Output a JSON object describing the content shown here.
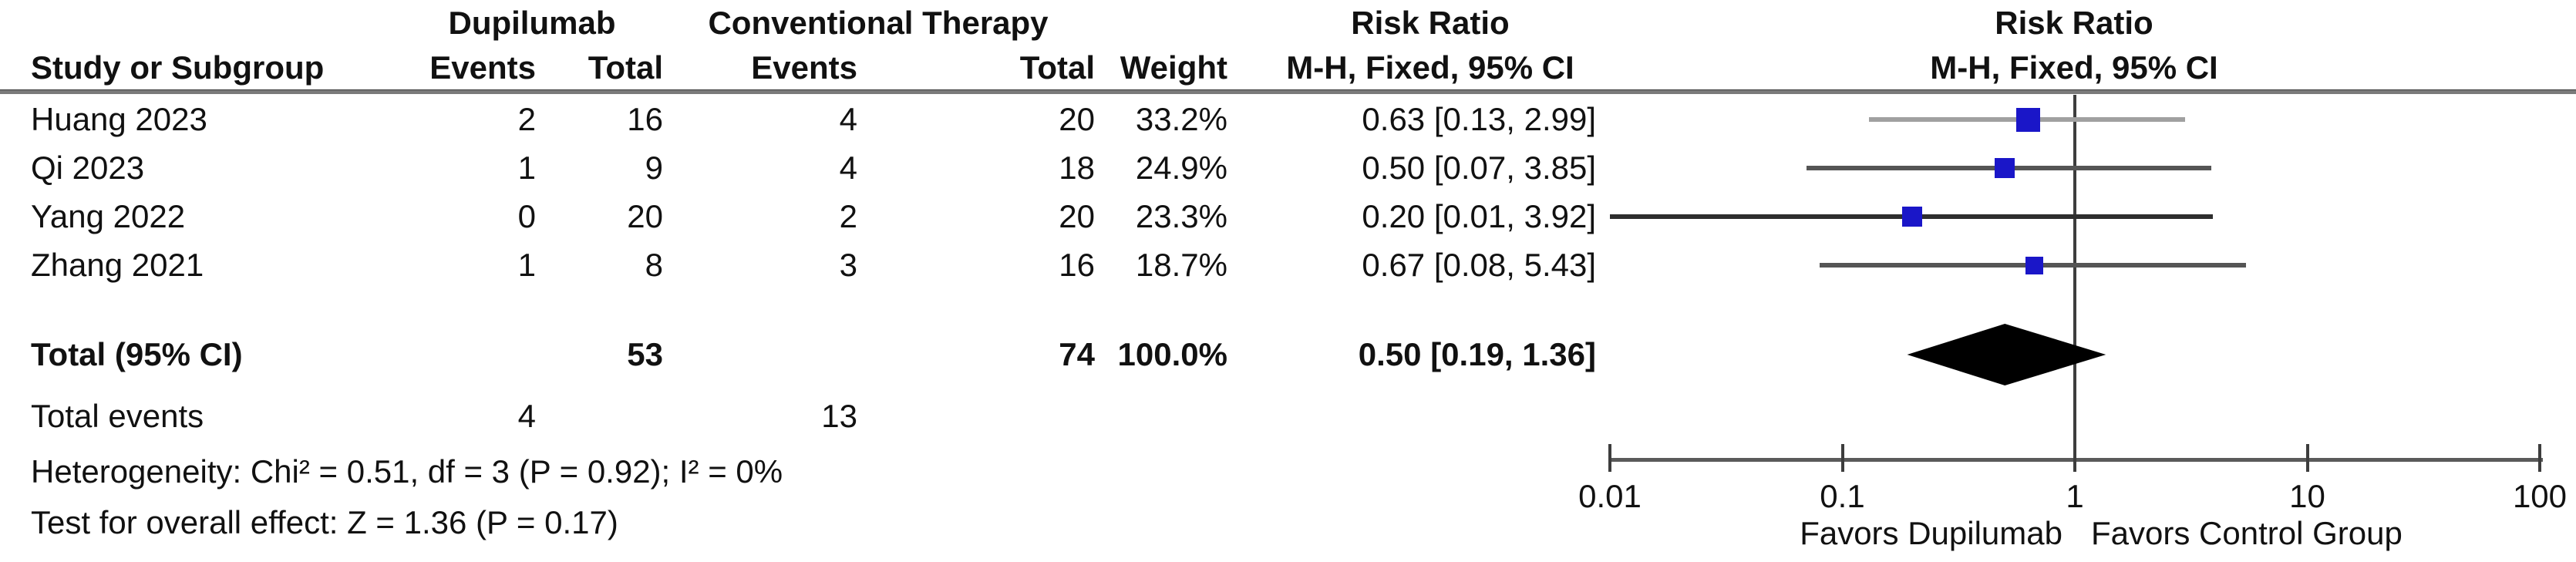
{
  "header": {
    "group1": "Dupilumab",
    "group2": "Conventional Therapy",
    "study": "Study or Subgroup",
    "events": "Events",
    "total": "Total",
    "weight": "Weight",
    "risk_ratio": "Risk Ratio",
    "method": "M-H, Fixed, 95% CI"
  },
  "chart_data": {
    "type": "forest",
    "effect_measure": "Risk Ratio",
    "model": "M-H, Fixed, 95% CI",
    "studies": [
      {
        "name": "Huang 2023",
        "events1": "2",
        "total1": "16",
        "events2": "4",
        "total2": "20",
        "weight": "33.2%",
        "weight_pct": 33.2,
        "rr": 0.63,
        "ci_low": 0.13,
        "ci_high": 2.99,
        "rr_label": "0.63 [0.13, 2.99]"
      },
      {
        "name": "Qi 2023",
        "events1": "1",
        "total1": "9",
        "events2": "4",
        "total2": "18",
        "weight": "24.9%",
        "weight_pct": 24.9,
        "rr": 0.5,
        "ci_low": 0.07,
        "ci_high": 3.85,
        "rr_label": "0.50 [0.07, 3.85]"
      },
      {
        "name": "Yang 2022",
        "events1": "0",
        "total1": "20",
        "events2": "2",
        "total2": "20",
        "weight": "23.3%",
        "weight_pct": 23.3,
        "rr": 0.2,
        "ci_low": 0.01,
        "ci_high": 3.92,
        "rr_label": "0.20 [0.01, 3.92]"
      },
      {
        "name": "Zhang 2021",
        "events1": "1",
        "total1": "8",
        "events2": "3",
        "total2": "16",
        "weight": "18.7%",
        "weight_pct": 18.7,
        "rr": 0.67,
        "ci_low": 0.08,
        "ci_high": 5.43,
        "rr_label": "0.67 [0.08, 5.43]"
      }
    ],
    "total": {
      "label": "Total (95% CI)",
      "total1": "53",
      "total2": "74",
      "weight": "100.0%",
      "rr": 0.5,
      "ci_low": 0.19,
      "ci_high": 1.36,
      "rr_label": "0.50 [0.19, 1.36]"
    },
    "total_events": {
      "label": "Total events",
      "events1": "4",
      "events2": "13"
    },
    "heterogeneity": "Heterogeneity: Chi² = 0.51, df = 3 (P = 0.92); I² = 0%",
    "overall_effect": "Test for overall effect: Z = 1.36 (P = 0.17)",
    "axis": {
      "scale": "log",
      "min": 0.01,
      "max": 100,
      "ticks": [
        "0.01",
        "0.1",
        "1",
        "10",
        "100"
      ],
      "ref_line": 1
    },
    "footer_left": "Favors Dupilumab",
    "footer_right": "Favors Control Group",
    "colors": {
      "marker": "#1a16c8",
      "ci_lines": [
        "#a0a0a0",
        "#555555",
        "#2e2e2e",
        "#555555"
      ],
      "diamond": "#000000",
      "axis": "#3d3d3d",
      "text": "#111111"
    }
  }
}
